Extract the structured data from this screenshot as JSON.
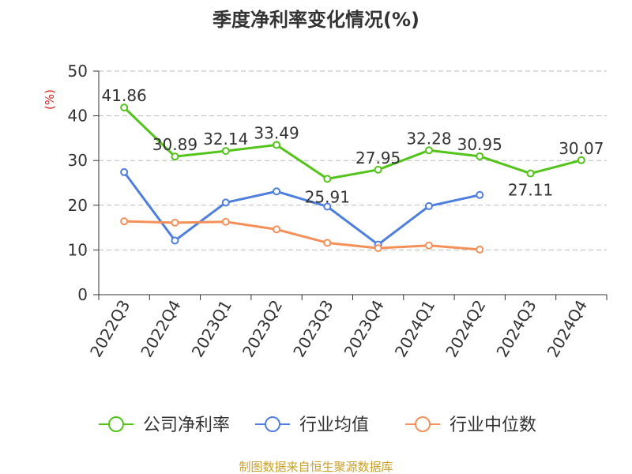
{
  "title": "季度净利率变化情况(%)",
  "source": "制图数据来自恒生聚源数据库",
  "colors": {
    "axis": "#333333",
    "grid": "#bbbbbb",
    "unit": "#e0201b",
    "source": "#c8a02a"
  },
  "chart_data": {
    "type": "line",
    "title": "季度净利率变化情况(%)",
    "ylabel": "(%)",
    "xlabel": "",
    "ylim": [
      0,
      50
    ],
    "yticks": [
      0,
      10,
      20,
      30,
      40,
      50
    ],
    "grid": true,
    "legend_position": "bottom",
    "categories": [
      "2022Q3",
      "2022Q4",
      "2023Q1",
      "2023Q2",
      "2023Q3",
      "2023Q4",
      "2024Q1",
      "2024Q2",
      "2024Q3",
      "2024Q4"
    ],
    "series": [
      {
        "name": "公司净利率",
        "color": "#52c41a",
        "values": [
          41.86,
          30.89,
          32.14,
          33.49,
          25.91,
          27.95,
          32.28,
          30.95,
          27.11,
          30.07
        ],
        "labels": [
          "41.86",
          "30.89",
          "32.14",
          "33.49",
          "25.91",
          "27.95",
          "32.28",
          "30.95",
          "27.11",
          "30.07"
        ]
      },
      {
        "name": "行业均值",
        "color": "#4e7fde",
        "values": [
          27.4,
          12.1,
          20.6,
          23.1,
          19.7,
          11.2,
          19.8,
          22.3,
          null,
          null
        ]
      },
      {
        "name": "行业中位数",
        "color": "#f4905a",
        "values": [
          16.4,
          16.1,
          16.3,
          14.6,
          11.6,
          10.4,
          11.0,
          10.1,
          null,
          null
        ]
      }
    ]
  }
}
